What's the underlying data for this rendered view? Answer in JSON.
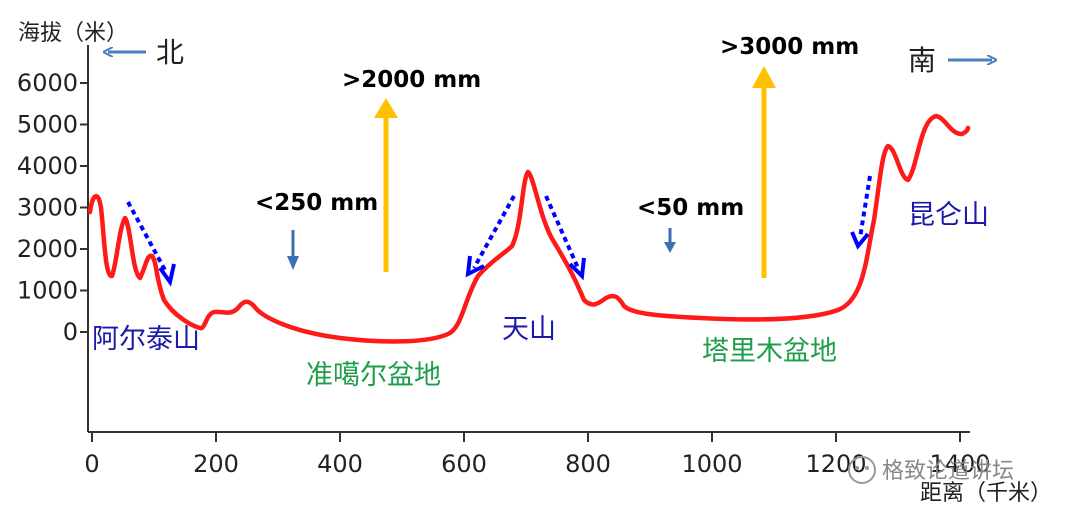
{
  "y_axis_title": "海拔（米）",
  "x_axis_title": "距离（千米）",
  "y_ticks": [
    {
      "value": 0,
      "label": "0"
    },
    {
      "value": 1000,
      "label": "1000"
    },
    {
      "value": 2000,
      "label": "2000"
    },
    {
      "value": 3000,
      "label": "3000"
    },
    {
      "value": 4000,
      "label": "4000"
    },
    {
      "value": 5000,
      "label": "5000"
    },
    {
      "value": 6000,
      "label": "6000"
    }
  ],
  "x_ticks": [
    {
      "value": 0,
      "label": "0"
    },
    {
      "value": 200,
      "label": "200"
    },
    {
      "value": 400,
      "label": "400"
    },
    {
      "value": 600,
      "label": "600"
    },
    {
      "value": 800,
      "label": "800"
    },
    {
      "value": 1000,
      "label": "1000"
    },
    {
      "value": 1200,
      "label": "1200"
    },
    {
      "value": 1400,
      "label": "1400"
    }
  ],
  "directions": {
    "north": "北",
    "south": "南"
  },
  "precipitation": {
    "dzungaria_low": "<250 mm",
    "dzungaria_high": ">2000 mm",
    "tarim_low": "<50 mm",
    "tarim_high": ">3000 mm"
  },
  "mountains": {
    "altai": "阿尔泰山",
    "tianshan": "天山",
    "kunlun": "昆仑山"
  },
  "basins": {
    "dzungar": "准噶尔盆地",
    "tarim": "塔里木盆地"
  },
  "watermark": "格致论道讲坛",
  "colors": {
    "profile": "#ff1a1a",
    "mountain_label": "#1a1aa8",
    "basin_label": "#1f9e4a",
    "direction_arrow": "#4a7fbf",
    "precip_arrow": "#ffc000",
    "wind_arrow": "#0000ff",
    "down_arrow": "#3d6fb5"
  }
}
